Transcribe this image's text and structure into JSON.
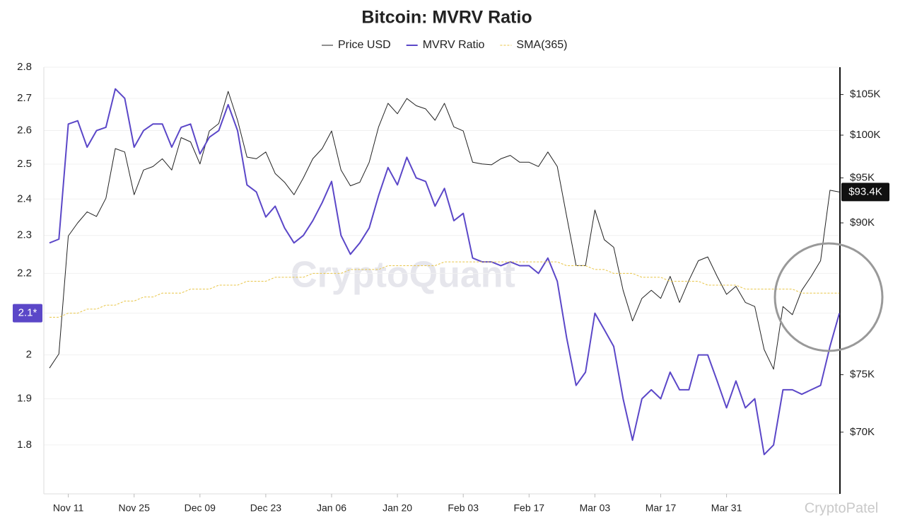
{
  "chart_data": {
    "type": "line",
    "title": "Bitcoin: MVRV Ratio",
    "categories": [
      null,
      null,
      "Nov 11",
      null,
      null,
      null,
      null,
      null,
      null,
      "Nov 25",
      null,
      null,
      null,
      null,
      null,
      null,
      "Dec 09",
      null,
      null,
      null,
      null,
      null,
      null,
      "Dec 23",
      null,
      null,
      null,
      null,
      null,
      null,
      "Jan 06",
      null,
      null,
      null,
      null,
      null,
      null,
      "Jan 20",
      null,
      null,
      null,
      null,
      null,
      null,
      "Feb 03",
      null,
      null,
      null,
      null,
      null,
      null,
      "Feb 17",
      null,
      null,
      null,
      null,
      null,
      null,
      "Mar 03",
      null,
      null,
      null,
      null,
      null,
      null,
      "Mar 17",
      null,
      null,
      null,
      null,
      null,
      null,
      "Mar 31",
      null,
      null,
      null,
      null,
      null,
      null,
      null,
      null,
      null,
      null,
      null,
      null
    ],
    "series": [
      {
        "name": "Price USD",
        "color": "#222222",
        "axis": "y2",
        "end_label": "$93.4K",
        "values": [
          75600,
          76900,
          88600,
          90000,
          91200,
          90700,
          92700,
          98400,
          98000,
          93100,
          95900,
          96300,
          97200,
          95900,
          99700,
          99200,
          96600,
          100500,
          101400,
          105400,
          101800,
          97400,
          97200,
          98000,
          95500,
          94500,
          93100,
          95000,
          97200,
          98400,
          100500,
          95900,
          94100,
          94500,
          96800,
          101000,
          103900,
          102600,
          104500,
          103600,
          103200,
          101800,
          103900,
          101000,
          100500,
          96800,
          96600,
          96500,
          97200,
          97600,
          96800,
          96800,
          96300,
          98000,
          96300,
          90700,
          85500,
          85500,
          91400,
          88200,
          87400,
          83000,
          80000,
          82200,
          83000,
          82200,
          84400,
          81800,
          84000,
          86000,
          86400,
          84400,
          82600,
          83400,
          81800,
          81400,
          77300,
          75500,
          81400,
          80600,
          83000,
          84400,
          86000,
          93600,
          93400
        ]
      },
      {
        "name": "MVRV Ratio",
        "color": "#5b47c8",
        "end_label": "2.1*",
        "values": [
          2.28,
          2.29,
          2.62,
          2.63,
          2.55,
          2.6,
          2.61,
          2.73,
          2.7,
          2.55,
          2.6,
          2.62,
          2.62,
          2.55,
          2.61,
          2.62,
          2.53,
          2.58,
          2.6,
          2.68,
          2.6,
          2.44,
          2.42,
          2.35,
          2.38,
          2.32,
          2.28,
          2.3,
          2.34,
          2.39,
          2.45,
          2.3,
          2.25,
          2.28,
          2.32,
          2.41,
          2.49,
          2.44,
          2.52,
          2.46,
          2.45,
          2.38,
          2.43,
          2.34,
          2.36,
          2.24,
          2.23,
          2.23,
          2.22,
          2.23,
          2.22,
          2.22,
          2.2,
          2.24,
          2.18,
          2.04,
          1.93,
          1.96,
          2.1,
          2.06,
          2.02,
          1.9,
          1.81,
          1.9,
          1.92,
          1.9,
          1.96,
          1.92,
          1.92,
          2.0,
          2.0,
          1.94,
          1.88,
          1.94,
          1.88,
          1.9,
          1.78,
          1.8,
          1.92,
          1.92,
          1.91,
          1.92,
          1.93,
          2.02,
          2.1
        ]
      },
      {
        "name": "SMA(365)",
        "color": "#e8c547",
        "dashed": true,
        "values": [
          2.09,
          2.09,
          2.1,
          2.1,
          2.11,
          2.11,
          2.12,
          2.12,
          2.13,
          2.13,
          2.14,
          2.14,
          2.15,
          2.15,
          2.15,
          2.16,
          2.16,
          2.16,
          2.17,
          2.17,
          2.17,
          2.18,
          2.18,
          2.18,
          2.19,
          2.19,
          2.19,
          2.19,
          2.2,
          2.2,
          2.2,
          2.2,
          2.21,
          2.21,
          2.21,
          2.21,
          2.22,
          2.22,
          2.22,
          2.22,
          2.22,
          2.22,
          2.23,
          2.23,
          2.23,
          2.23,
          2.23,
          2.23,
          2.23,
          2.23,
          2.23,
          2.23,
          2.23,
          2.23,
          2.23,
          2.22,
          2.22,
          2.22,
          2.21,
          2.21,
          2.2,
          2.2,
          2.2,
          2.19,
          2.19,
          2.19,
          2.18,
          2.18,
          2.18,
          2.18,
          2.17,
          2.17,
          2.17,
          2.17,
          2.16,
          2.16,
          2.16,
          2.16,
          2.16,
          2.16,
          2.15,
          2.15,
          2.15,
          2.15,
          2.15
        ]
      }
    ],
    "ylim": [
      1.7,
      2.8
    ],
    "ylog": true,
    "yticks": [
      2.8,
      2.7,
      2.6,
      2.5,
      2.4,
      2.3,
      2.2,
      2.1,
      2,
      1.9,
      1.8
    ],
    "y2lim": [
      65000,
      108500
    ],
    "y2log": true,
    "y2ticks": [
      {
        "value": 105000,
        "label": "$105K"
      },
      {
        "value": 100000,
        "label": "$100K"
      },
      {
        "value": 95000,
        "label": "$95K"
      },
      {
        "value": 90000,
        "label": "$90K"
      },
      {
        "value": 75000,
        "label": "$75K"
      },
      {
        "value": 70000,
        "label": "$70K"
      }
    ],
    "grid": true,
    "legend": "top",
    "watermarks": [
      "CryptoQuant",
      "CryptoPatel"
    ]
  }
}
